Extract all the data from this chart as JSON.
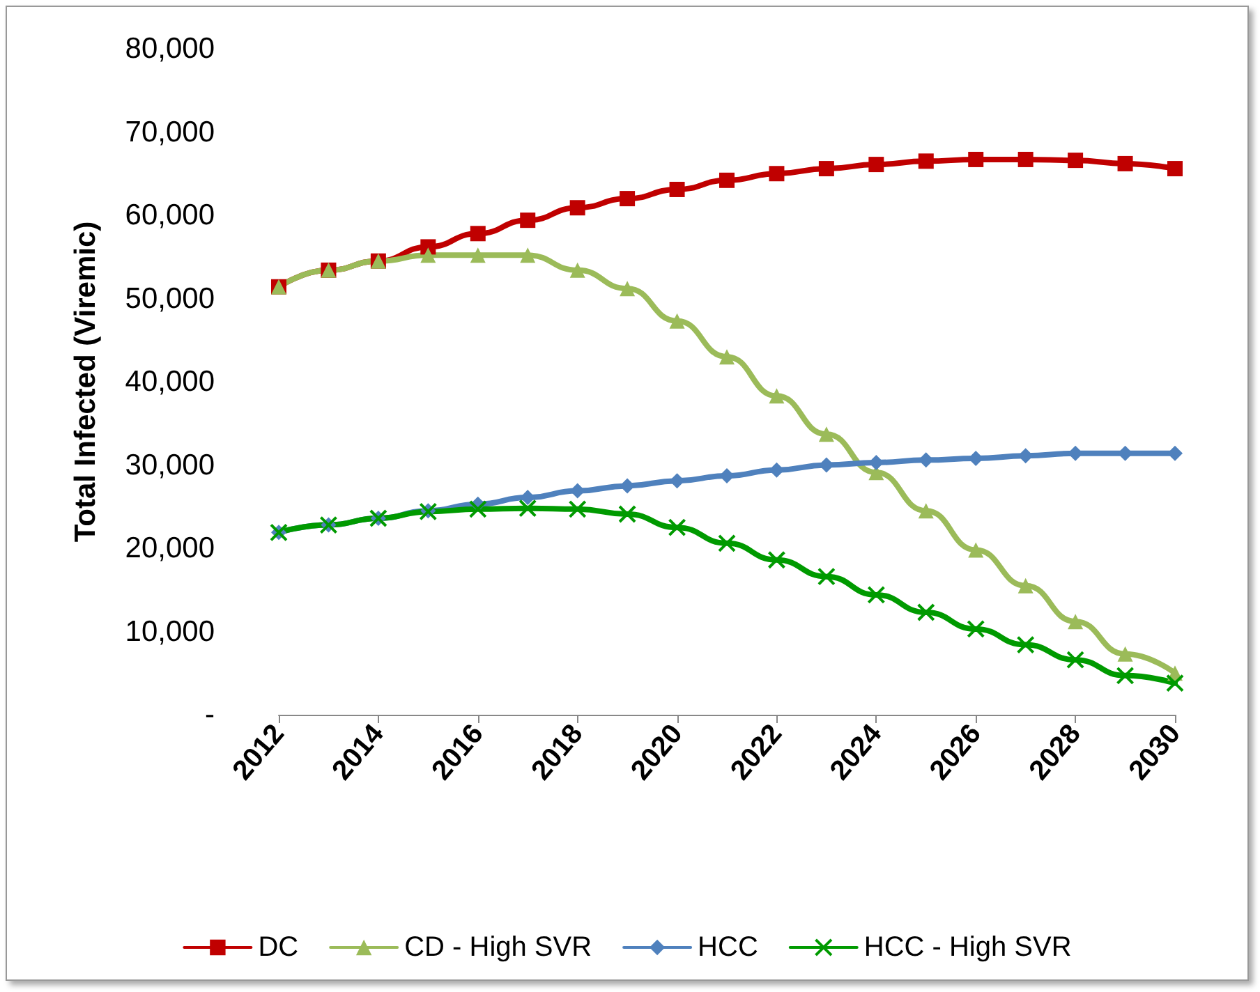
{
  "chart_data": {
    "type": "line",
    "ylabel": "Total Infected (Viremic)",
    "x": [
      2012,
      2013,
      2014,
      2015,
      2016,
      2017,
      2018,
      2019,
      2020,
      2021,
      2022,
      2023,
      2024,
      2025,
      2026,
      2027,
      2028,
      2029,
      2030
    ],
    "series": [
      {
        "name": "DC",
        "color": "#c00000",
        "marker": "square",
        "values": [
          51400,
          53400,
          54500,
          56200,
          57800,
          59400,
          60900,
          62000,
          63100,
          64200,
          65000,
          65600,
          66100,
          66500,
          66700,
          66700,
          66600,
          66200,
          65600
        ]
      },
      {
        "name": "CD - High SVR",
        "color": "#9bbb59",
        "marker": "triangle",
        "values": [
          51400,
          53400,
          54500,
          55200,
          55200,
          55200,
          53400,
          51200,
          47300,
          43000,
          38300,
          33700,
          29100,
          24500,
          19800,
          15500,
          11200,
          7300,
          5000
        ]
      },
      {
        "name": "HCC",
        "color": "#4f81bd",
        "marker": "diamond",
        "values": [
          21900,
          22800,
          23600,
          24500,
          25300,
          26100,
          26900,
          27500,
          28100,
          28700,
          29400,
          30000,
          30300,
          30600,
          30800,
          31100,
          31400,
          31400,
          31400
        ]
      },
      {
        "name": "HCC - High SVR",
        "color": "#009a00",
        "marker": "cross",
        "values": [
          21900,
          22800,
          23600,
          24400,
          24700,
          24800,
          24700,
          24100,
          22500,
          20600,
          18600,
          16600,
          14400,
          12300,
          10300,
          8400,
          6600,
          4700,
          3800
        ]
      }
    ],
    "xlim": [
      2012,
      2030
    ],
    "xticks": [
      2012,
      2014,
      2016,
      2018,
      2020,
      2022,
      2024,
      2026,
      2028,
      2030
    ],
    "ylim": [
      0,
      80000
    ],
    "yticks": [
      {
        "value": 0,
        "label": "-"
      },
      {
        "value": 10000,
        "label": "10,000"
      },
      {
        "value": 20000,
        "label": "20,000"
      },
      {
        "value": 30000,
        "label": "30,000"
      },
      {
        "value": 40000,
        "label": "40,000"
      },
      {
        "value": 50000,
        "label": "50,000"
      },
      {
        "value": 60000,
        "label": "60,000"
      },
      {
        "value": 70000,
        "label": "70,000"
      },
      {
        "value": 80000,
        "label": "80,000"
      }
    ],
    "grid": false,
    "legend": "bottom",
    "line_style": "solid"
  }
}
